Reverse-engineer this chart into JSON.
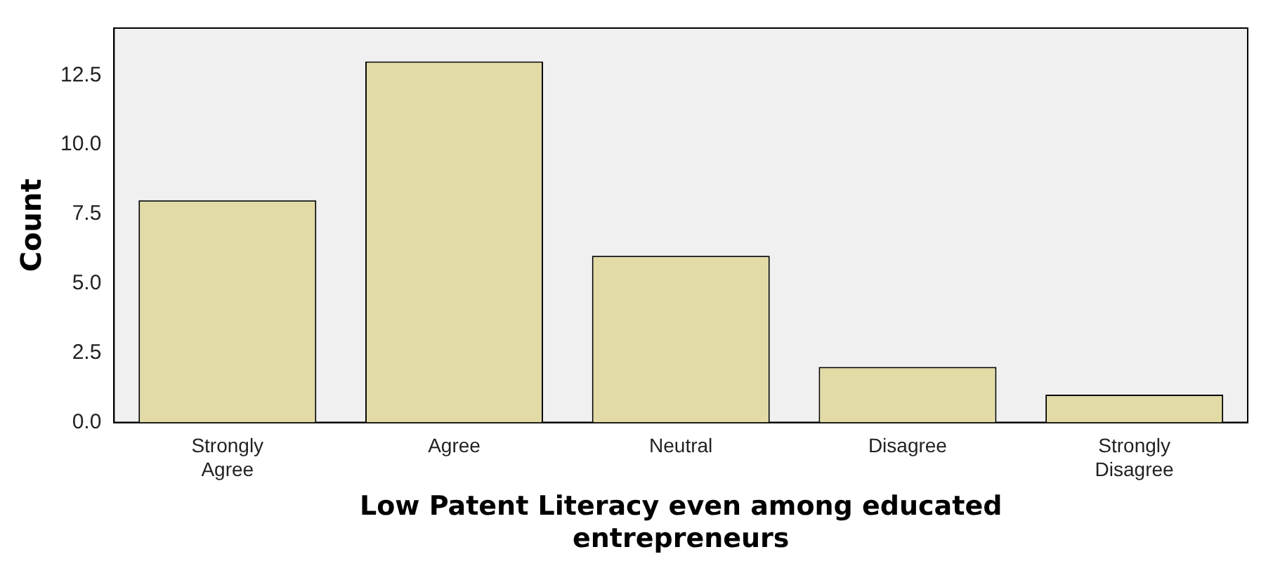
{
  "chart_data": {
    "type": "bar",
    "xlabel": "Low Patent Literacy even among educated entrepreneurs",
    "ylabel": "Count",
    "categories": [
      "Strongly Agree",
      "Agree",
      "Neutral",
      "Disagree",
      "Strongly Disagree"
    ],
    "values": [
      8,
      13,
      6,
      2,
      1
    ],
    "color": "#e3dba6",
    "ylim": [
      0,
      14.2
    ],
    "yticks": [
      {
        "value": 0,
        "label": "0.0"
      },
      {
        "value": 2.5,
        "label": "2.5"
      },
      {
        "value": 5,
        "label": "5.0"
      },
      {
        "value": 7.5,
        "label": "7.5"
      },
      {
        "value": 10,
        "label": "10.0"
      },
      {
        "value": 12.5,
        "label": "12.5"
      }
    ],
    "grid": false,
    "legend": false
  }
}
